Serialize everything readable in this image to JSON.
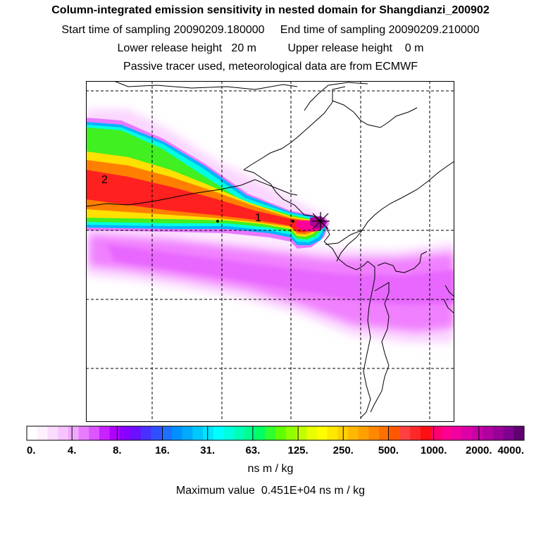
{
  "title": "Column-integrated emission sensitivity in nested domain for Shangdianzi_200902",
  "sampling": {
    "start_label": "Start time of sampling",
    "start_value": "20090209.180000",
    "end_label": "End time of sampling",
    "end_value": "20090209.210000"
  },
  "release": {
    "lower_label": "Lower release height",
    "lower_value": "20 m",
    "upper_label": "Upper release height",
    "upper_value": "0 m"
  },
  "note": "Passive tracer used, meteorological data are from ECMWF",
  "map": {
    "labels": [
      "2",
      "1"
    ],
    "colors": {
      "magenta": "#f070ff",
      "blue": "#00b4ff",
      "cyan": "#00ffe0",
      "green": "#30ff30",
      "yellow": "#ffe000",
      "orange": "#ff7800",
      "red": "#ff1818",
      "pink": "#ff0099"
    }
  },
  "colorbar": {
    "tick_labels": [
      "0.",
      "4.",
      "8.",
      "16.",
      "31.",
      "63.",
      "125.",
      "250.",
      "500.",
      "1000.",
      "2000.",
      "4000."
    ],
    "colors": [
      "#ffffff",
      "#fff0ff",
      "#fbdcff",
      "#f7c4ff",
      "#f0a8ff",
      "#e87cff",
      "#dc55ff",
      "#c822ff",
      "#b000ff",
      "#8800ff",
      "#6a10ff",
      "#4a30ff",
      "#3050ff",
      "#2070ff",
      "#0090ff",
      "#00aaff",
      "#00c8ff",
      "#00e4ff",
      "#00ffff",
      "#00ffe0",
      "#00ffb8",
      "#00ff90",
      "#00ff60",
      "#30ff30",
      "#60ff00",
      "#90ff00",
      "#c0ff00",
      "#e8ff00",
      "#ffff00",
      "#ffe800",
      "#ffd000",
      "#ffb800",
      "#ffa000",
      "#ff8800",
      "#ff7000",
      "#ff5800",
      "#ff4040",
      "#ff2828",
      "#ff1010",
      "#ff0070",
      "#ff0090",
      "#f000a0",
      "#dd00a8",
      "#c800a8",
      "#b000a0",
      "#980098",
      "#800090",
      "#600070"
    ],
    "units": "ns m / kg"
  },
  "max_value": {
    "label": "Maximum value",
    "value": "0.451E+04",
    "units": "ns m / kg"
  }
}
